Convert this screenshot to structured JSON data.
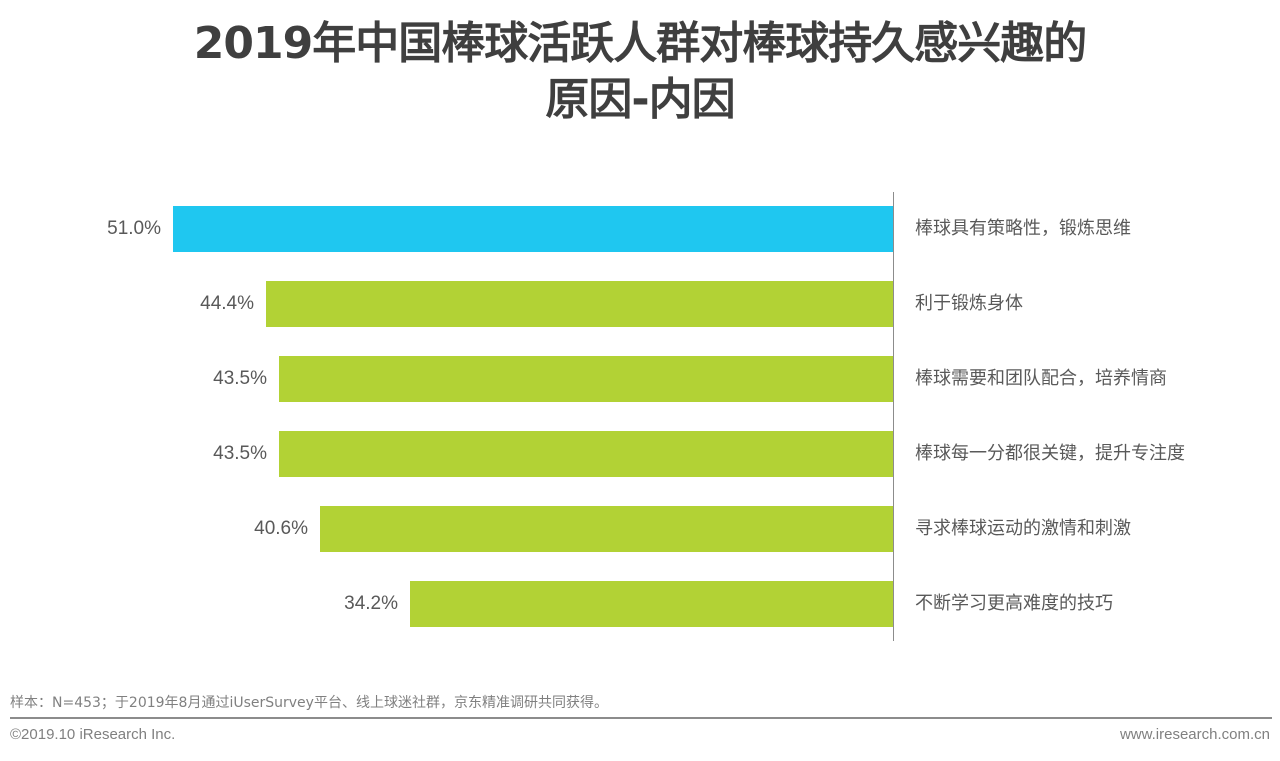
{
  "header": {
    "title_line1": "2019年中国棒球活跃人群对棒球持久感兴趣的",
    "title_line2": "原因-内因"
  },
  "chart_data": {
    "type": "bar",
    "orientation": "horizontal",
    "title": "2019年中国棒球活跃人群对棒球持久感兴趣的原因-内因",
    "categories": [
      "棒球具有策略性，锻炼思维",
      "利于锻炼身体",
      "棒球需要和团队配合，培养情商",
      "棒球每一分都很关键，提升专注度",
      "寻求棒球运动的激情和刺激",
      "不断学习更高难度的技巧"
    ],
    "values": [
      51.0,
      44.4,
      43.5,
      43.5,
      40.6,
      34.2
    ],
    "value_labels": [
      "51.0%",
      "44.4%",
      "43.5%",
      "43.5%",
      "40.6%",
      "34.2%"
    ],
    "bar_colors": [
      "#1fc7f0",
      "#b2d235",
      "#b2d235",
      "#b2d235",
      "#b2d235",
      "#b2d235"
    ],
    "unit": "%",
    "xlabel": "",
    "ylabel": "",
    "grid": false,
    "legend": null
  },
  "footer": {
    "note": "样本：N=453；于2019年8月通过iUserSurvey平台、线上球迷社群，京东精准调研共同获得。",
    "copyright": "©2019.10 iResearch Inc.",
    "website": "www.iresearch.com.cn"
  }
}
